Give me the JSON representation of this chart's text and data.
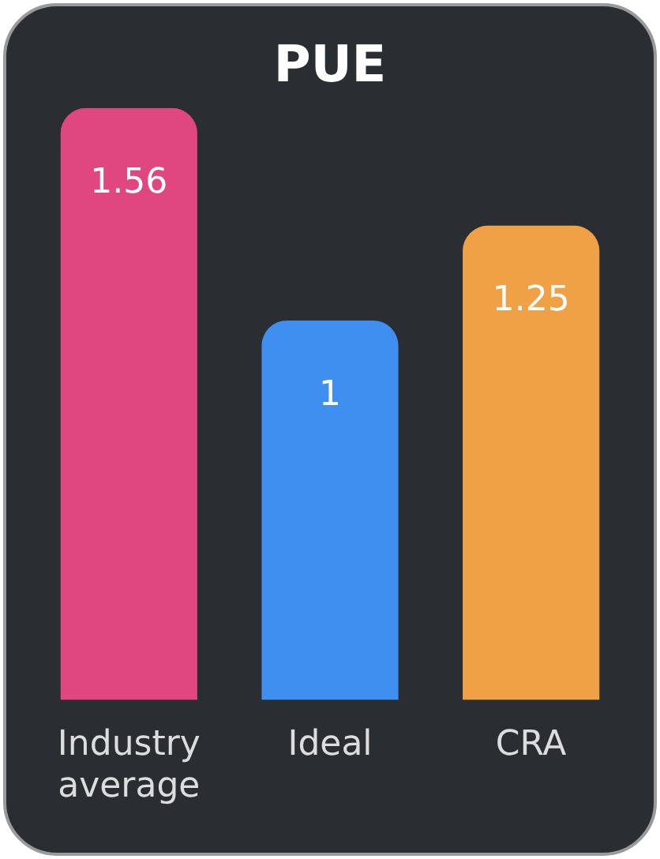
{
  "chart_data": {
    "type": "bar",
    "title": "PUE",
    "categories": [
      "Industry average",
      "Ideal",
      "CRA"
    ],
    "values": [
      1.56,
      1,
      1.25
    ],
    "colors": [
      "#e0467f",
      "#3f8ff0",
      "#f0a045"
    ],
    "data_labels": true,
    "legend": false
  }
}
